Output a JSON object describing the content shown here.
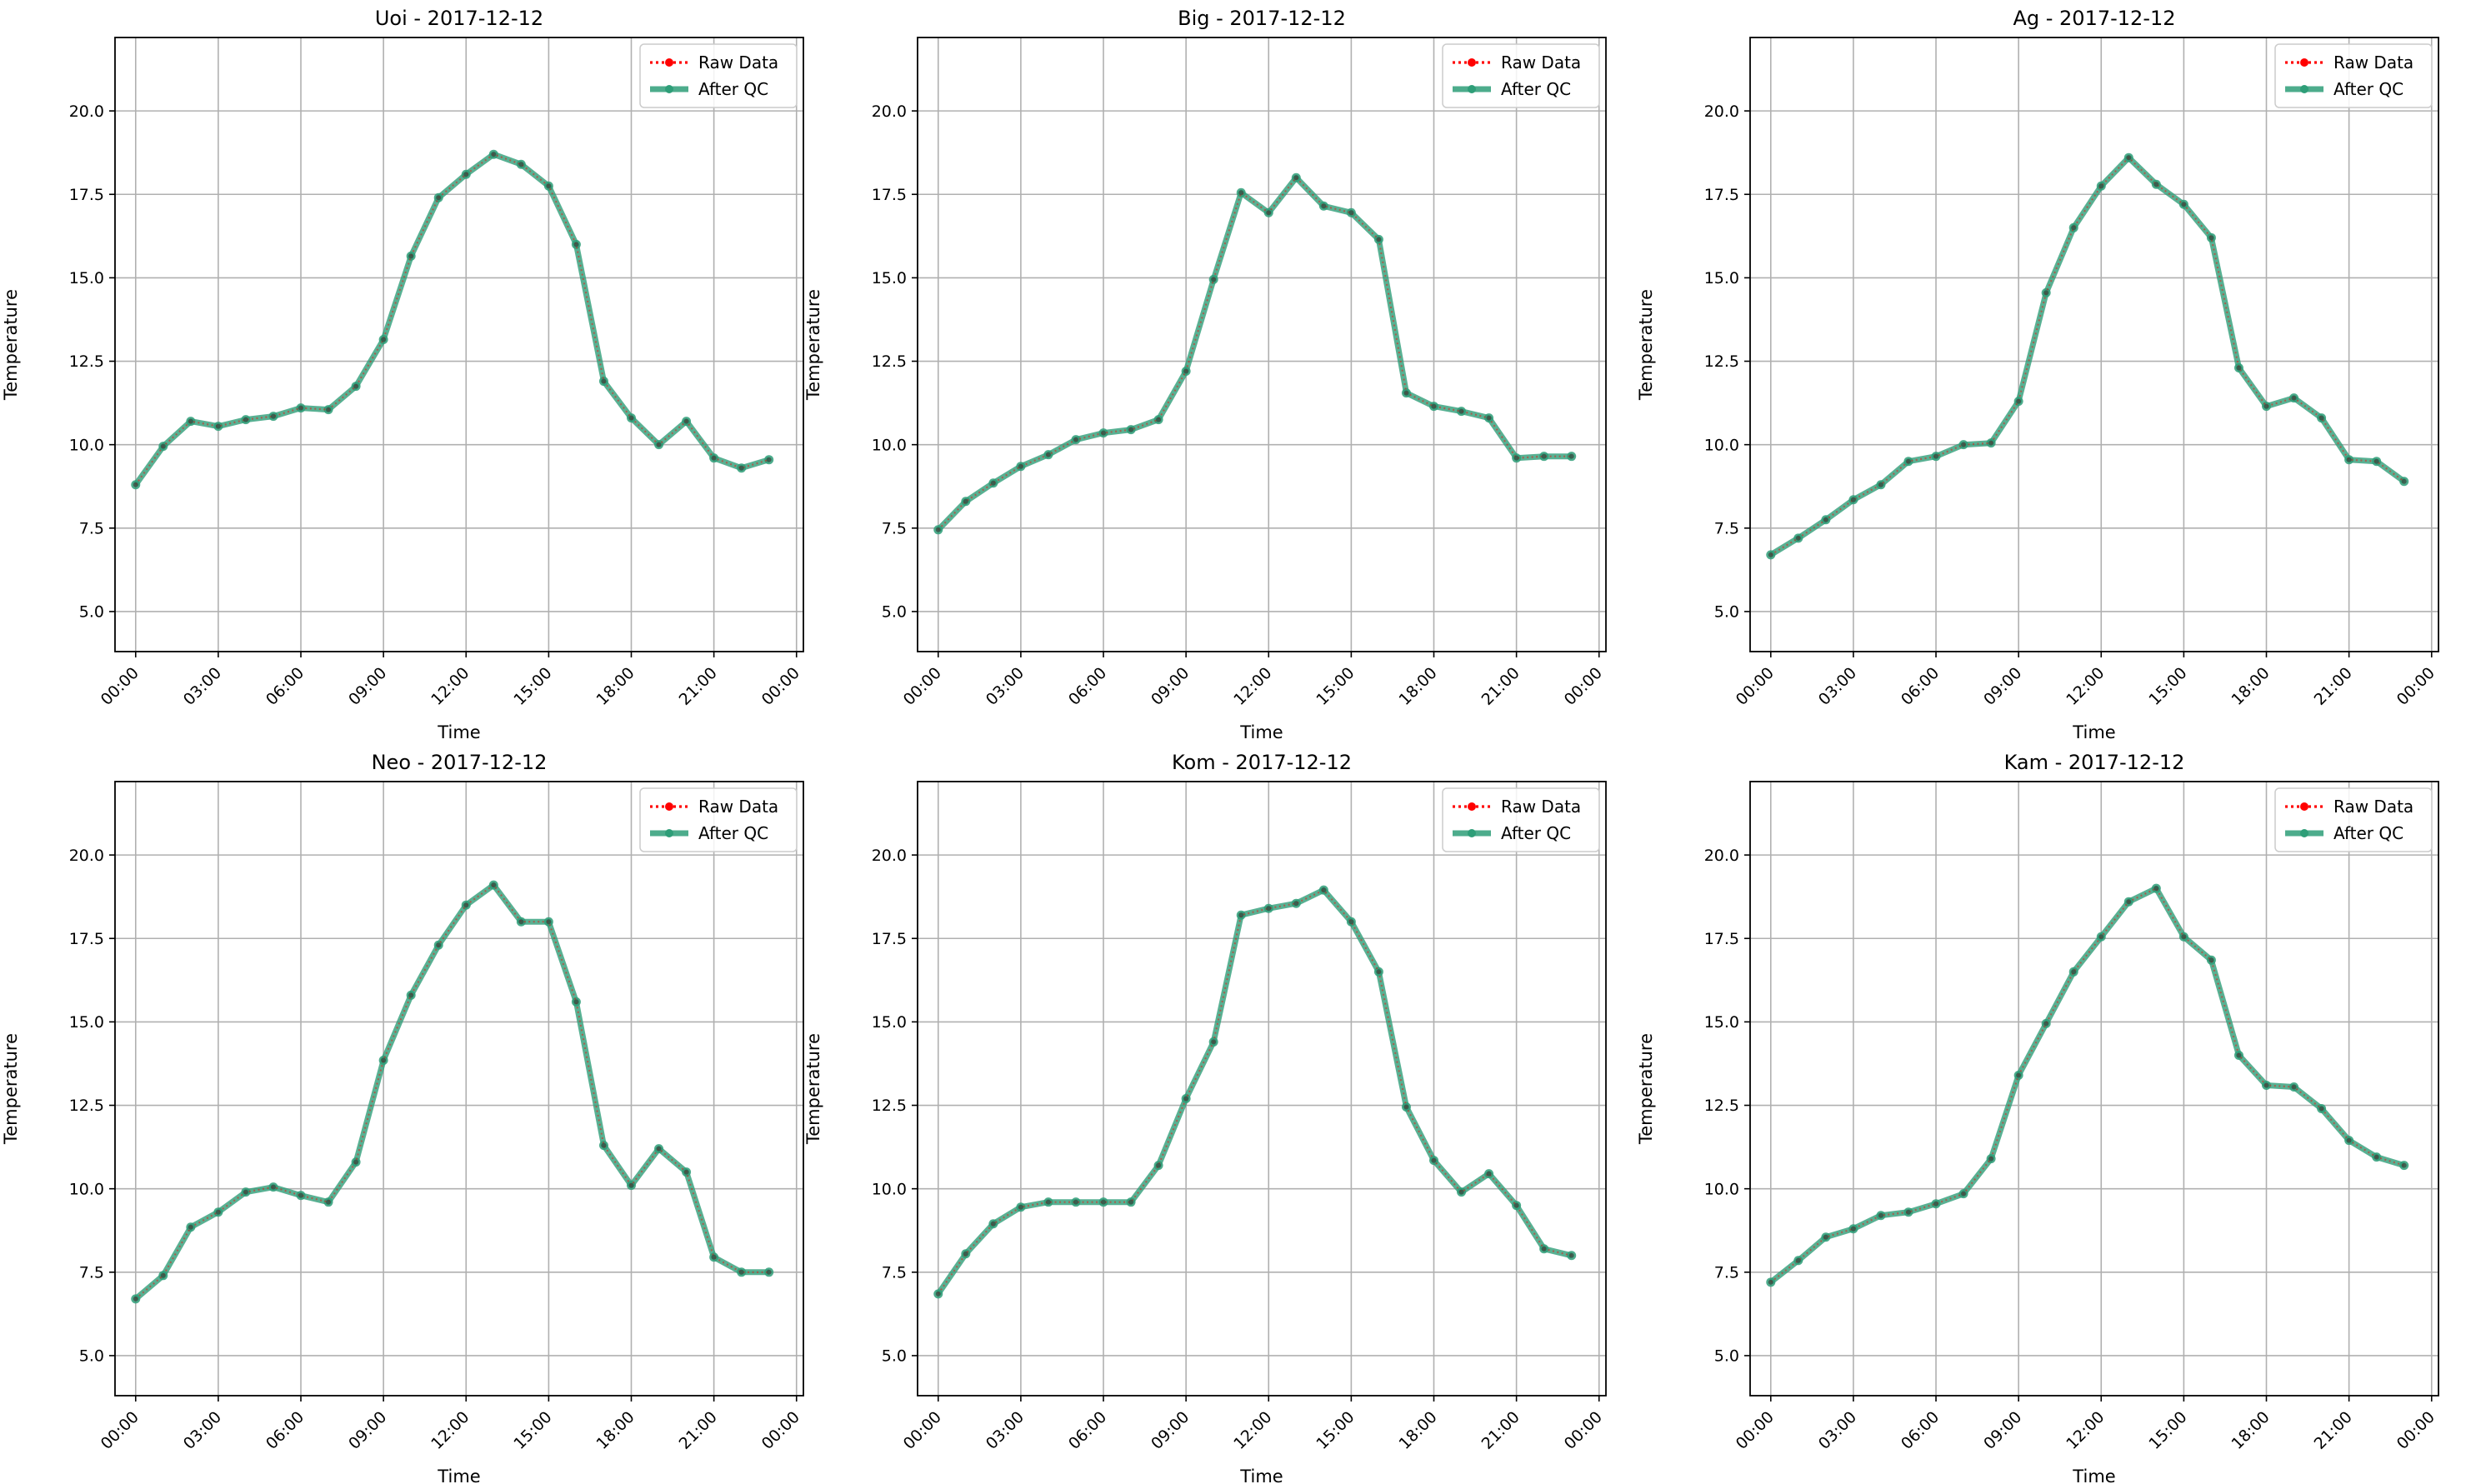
{
  "legend": {
    "raw_label": "Raw Data",
    "qc_label": "After QC"
  },
  "colors": {
    "raw": "#ff0000",
    "qc": "#2e9e78",
    "grid": "#b0b0b0"
  },
  "chart_data": [
    {
      "type": "line",
      "title": "Uoi - 2017-12-12",
      "xlabel": "Time",
      "ylabel": "Temperature",
      "x_ticks": [
        "00:00",
        "03:00",
        "06:00",
        "09:00",
        "12:00",
        "15:00",
        "18:00",
        "21:00",
        "00:00"
      ],
      "y_ticks": [
        "5.0",
        "7.5",
        "10.0",
        "12.5",
        "15.0",
        "17.5",
        "20.0"
      ],
      "xlim": [
        "2017-12-11 23:15",
        "2017-12-13 00:15"
      ],
      "ylim": [
        3.8,
        22.2
      ],
      "grid": true,
      "legend_position": "top-right",
      "x": [
        "00:00",
        "01:00",
        "02:00",
        "03:00",
        "04:00",
        "05:00",
        "06:00",
        "07:00",
        "08:00",
        "09:00",
        "10:00",
        "11:00",
        "12:00",
        "13:00",
        "14:00",
        "15:00",
        "16:00",
        "17:00",
        "18:00",
        "19:00",
        "20:00",
        "21:00",
        "22:00",
        "23:00"
      ],
      "series": [
        {
          "name": "Raw Data",
          "values": [
            8.8,
            9.95,
            10.7,
            10.55,
            10.75,
            10.85,
            11.1,
            11.05,
            11.75,
            13.15,
            15.65,
            17.4,
            18.1,
            18.7,
            18.4,
            17.75,
            16.0,
            11.9,
            10.8,
            10.0,
            10.7,
            9.6,
            9.3,
            9.55
          ]
        },
        {
          "name": "After QC",
          "values": [
            8.8,
            9.95,
            10.7,
            10.55,
            10.75,
            10.85,
            11.1,
            11.05,
            11.75,
            13.15,
            15.65,
            17.4,
            18.1,
            18.7,
            18.4,
            17.75,
            16.0,
            11.9,
            10.8,
            10.0,
            10.7,
            9.6,
            9.3,
            9.55
          ]
        }
      ]
    },
    {
      "type": "line",
      "title": "Big - 2017-12-12",
      "xlabel": "Time",
      "ylabel": "Temperature",
      "x_ticks": [
        "00:00",
        "03:00",
        "06:00",
        "09:00",
        "12:00",
        "15:00",
        "18:00",
        "21:00",
        "00:00"
      ],
      "y_ticks": [
        "5.0",
        "7.5",
        "10.0",
        "12.5",
        "15.0",
        "17.5",
        "20.0"
      ],
      "xlim": [
        "2017-12-11 23:15",
        "2017-12-13 00:15"
      ],
      "ylim": [
        3.8,
        22.2
      ],
      "grid": true,
      "legend_position": "top-right",
      "x": [
        "00:00",
        "01:00",
        "02:00",
        "03:00",
        "04:00",
        "05:00",
        "06:00",
        "07:00",
        "08:00",
        "09:00",
        "10:00",
        "11:00",
        "12:00",
        "13:00",
        "14:00",
        "15:00",
        "16:00",
        "17:00",
        "18:00",
        "19:00",
        "20:00",
        "21:00",
        "22:00",
        "23:00"
      ],
      "series": [
        {
          "name": "Raw Data",
          "values": [
            7.45,
            8.3,
            8.85,
            9.35,
            9.7,
            10.15,
            10.35,
            10.45,
            10.75,
            12.2,
            14.95,
            17.55,
            16.95,
            18.0,
            17.15,
            16.95,
            16.15,
            11.55,
            11.15,
            11.0,
            10.8,
            9.6,
            9.65,
            9.65
          ]
        },
        {
          "name": "After QC",
          "values": [
            7.45,
            8.3,
            8.85,
            9.35,
            9.7,
            10.15,
            10.35,
            10.45,
            10.75,
            12.2,
            14.95,
            17.55,
            16.95,
            18.0,
            17.15,
            16.95,
            16.15,
            11.55,
            11.15,
            11.0,
            10.8,
            9.6,
            9.65,
            9.65
          ]
        }
      ]
    },
    {
      "type": "line",
      "title": "Ag - 2017-12-12",
      "xlabel": "Time",
      "ylabel": "Temperature",
      "x_ticks": [
        "00:00",
        "03:00",
        "06:00",
        "09:00",
        "12:00",
        "15:00",
        "18:00",
        "21:00",
        "00:00"
      ],
      "y_ticks": [
        "5.0",
        "7.5",
        "10.0",
        "12.5",
        "15.0",
        "17.5",
        "20.0"
      ],
      "xlim": [
        "2017-12-11 23:15",
        "2017-12-13 00:15"
      ],
      "ylim": [
        3.8,
        22.2
      ],
      "grid": true,
      "legend_position": "top-right",
      "x": [
        "00:00",
        "01:00",
        "02:00",
        "03:00",
        "04:00",
        "05:00",
        "06:00",
        "07:00",
        "08:00",
        "09:00",
        "10:00",
        "11:00",
        "12:00",
        "13:00",
        "14:00",
        "15:00",
        "16:00",
        "17:00",
        "18:00",
        "19:00",
        "20:00",
        "21:00",
        "22:00",
        "23:00"
      ],
      "series": [
        {
          "name": "Raw Data",
          "values": [
            6.7,
            7.2,
            7.75,
            8.35,
            8.8,
            9.5,
            9.65,
            10.0,
            10.05,
            11.3,
            14.55,
            16.5,
            17.75,
            18.6,
            17.8,
            17.2,
            16.2,
            12.3,
            11.15,
            11.4,
            10.8,
            9.55,
            9.5,
            8.9
          ]
        },
        {
          "name": "After QC",
          "values": [
            6.7,
            7.2,
            7.75,
            8.35,
            8.8,
            9.5,
            9.65,
            10.0,
            10.05,
            11.3,
            14.55,
            16.5,
            17.75,
            18.6,
            17.8,
            17.2,
            16.2,
            12.3,
            11.15,
            11.4,
            10.8,
            9.55,
            9.5,
            8.9
          ]
        }
      ]
    },
    {
      "type": "line",
      "title": "Neo - 2017-12-12",
      "xlabel": "Time",
      "ylabel": "Temperature",
      "x_ticks": [
        "00:00",
        "03:00",
        "06:00",
        "09:00",
        "12:00",
        "15:00",
        "18:00",
        "21:00",
        "00:00"
      ],
      "y_ticks": [
        "5.0",
        "7.5",
        "10.0",
        "12.5",
        "15.0",
        "17.5",
        "20.0"
      ],
      "xlim": [
        "2017-12-11 23:15",
        "2017-12-13 00:15"
      ],
      "ylim": [
        3.8,
        22.2
      ],
      "grid": true,
      "legend_position": "top-right",
      "x": [
        "00:00",
        "01:00",
        "02:00",
        "03:00",
        "04:00",
        "05:00",
        "06:00",
        "07:00",
        "08:00",
        "09:00",
        "10:00",
        "11:00",
        "12:00",
        "13:00",
        "14:00",
        "15:00",
        "16:00",
        "17:00",
        "18:00",
        "19:00",
        "20:00",
        "21:00",
        "22:00",
        "23:00"
      ],
      "series": [
        {
          "name": "Raw Data",
          "values": [
            6.7,
            7.4,
            8.85,
            9.3,
            9.9,
            10.05,
            9.8,
            9.6,
            10.8,
            13.85,
            15.8,
            17.3,
            18.5,
            19.1,
            18.0,
            18.0,
            15.6,
            11.3,
            10.1,
            11.2,
            10.5,
            7.95,
            7.5,
            7.5
          ]
        },
        {
          "name": "After QC",
          "values": [
            6.7,
            7.4,
            8.85,
            9.3,
            9.9,
            10.05,
            9.8,
            9.6,
            10.8,
            13.85,
            15.8,
            17.3,
            18.5,
            19.1,
            18.0,
            18.0,
            15.6,
            11.3,
            10.1,
            11.2,
            10.5,
            7.95,
            7.5,
            7.5
          ]
        }
      ]
    },
    {
      "type": "line",
      "title": "Kom - 2017-12-12",
      "xlabel": "Time",
      "ylabel": "Temperature",
      "x_ticks": [
        "00:00",
        "03:00",
        "06:00",
        "09:00",
        "12:00",
        "15:00",
        "18:00",
        "21:00",
        "00:00"
      ],
      "y_ticks": [
        "5.0",
        "7.5",
        "10.0",
        "12.5",
        "15.0",
        "17.5",
        "20.0"
      ],
      "xlim": [
        "2017-12-11 23:15",
        "2017-12-13 00:15"
      ],
      "ylim": [
        3.8,
        22.2
      ],
      "grid": true,
      "legend_position": "top-right",
      "x": [
        "00:00",
        "01:00",
        "02:00",
        "03:00",
        "04:00",
        "05:00",
        "06:00",
        "07:00",
        "08:00",
        "09:00",
        "10:00",
        "11:00",
        "12:00",
        "13:00",
        "14:00",
        "15:00",
        "16:00",
        "17:00",
        "18:00",
        "19:00",
        "20:00",
        "21:00",
        "22:00",
        "23:00"
      ],
      "series": [
        {
          "name": "Raw Data",
          "values": [
            6.85,
            8.05,
            8.95,
            9.45,
            9.6,
            9.6,
            9.6,
            9.6,
            10.7,
            12.7,
            14.4,
            18.2,
            18.4,
            18.55,
            18.95,
            18.0,
            16.5,
            12.45,
            10.85,
            9.9,
            10.45,
            9.5,
            8.2,
            8.0
          ]
        },
        {
          "name": "After QC",
          "values": [
            6.85,
            8.05,
            8.95,
            9.45,
            9.6,
            9.6,
            9.6,
            9.6,
            10.7,
            12.7,
            14.4,
            18.2,
            18.4,
            18.55,
            18.95,
            18.0,
            16.5,
            12.45,
            10.85,
            9.9,
            10.45,
            9.5,
            8.2,
            8.0
          ]
        }
      ]
    },
    {
      "type": "line",
      "title": "Kam - 2017-12-12",
      "xlabel": "Time",
      "ylabel": "Temperature",
      "x_ticks": [
        "00:00",
        "03:00",
        "06:00",
        "09:00",
        "12:00",
        "15:00",
        "18:00",
        "21:00",
        "00:00"
      ],
      "y_ticks": [
        "5.0",
        "7.5",
        "10.0",
        "12.5",
        "15.0",
        "17.5",
        "20.0"
      ],
      "xlim": [
        "2017-12-11 23:15",
        "2017-12-13 00:15"
      ],
      "ylim": [
        3.8,
        22.2
      ],
      "grid": true,
      "legend_position": "top-right",
      "x": [
        "00:00",
        "01:00",
        "02:00",
        "03:00",
        "04:00",
        "05:00",
        "06:00",
        "07:00",
        "08:00",
        "09:00",
        "10:00",
        "11:00",
        "12:00",
        "13:00",
        "14:00",
        "15:00",
        "16:00",
        "17:00",
        "18:00",
        "19:00",
        "20:00",
        "21:00",
        "22:00",
        "23:00"
      ],
      "series": [
        {
          "name": "Raw Data",
          "values": [
            7.2,
            7.85,
            8.55,
            8.8,
            9.2,
            9.3,
            9.55,
            9.85,
            10.9,
            13.4,
            14.95,
            16.5,
            17.55,
            18.6,
            19.0,
            17.55,
            16.85,
            14.0,
            13.1,
            13.05,
            12.4,
            11.45,
            10.95,
            10.7
          ]
        },
        {
          "name": "After QC",
          "values": [
            7.2,
            7.85,
            8.55,
            8.8,
            9.2,
            9.3,
            9.55,
            9.85,
            10.9,
            13.4,
            14.95,
            16.5,
            17.55,
            18.6,
            19.0,
            17.55,
            16.85,
            14.0,
            13.1,
            13.05,
            12.4,
            11.45,
            10.95,
            10.7
          ]
        }
      ]
    }
  ]
}
